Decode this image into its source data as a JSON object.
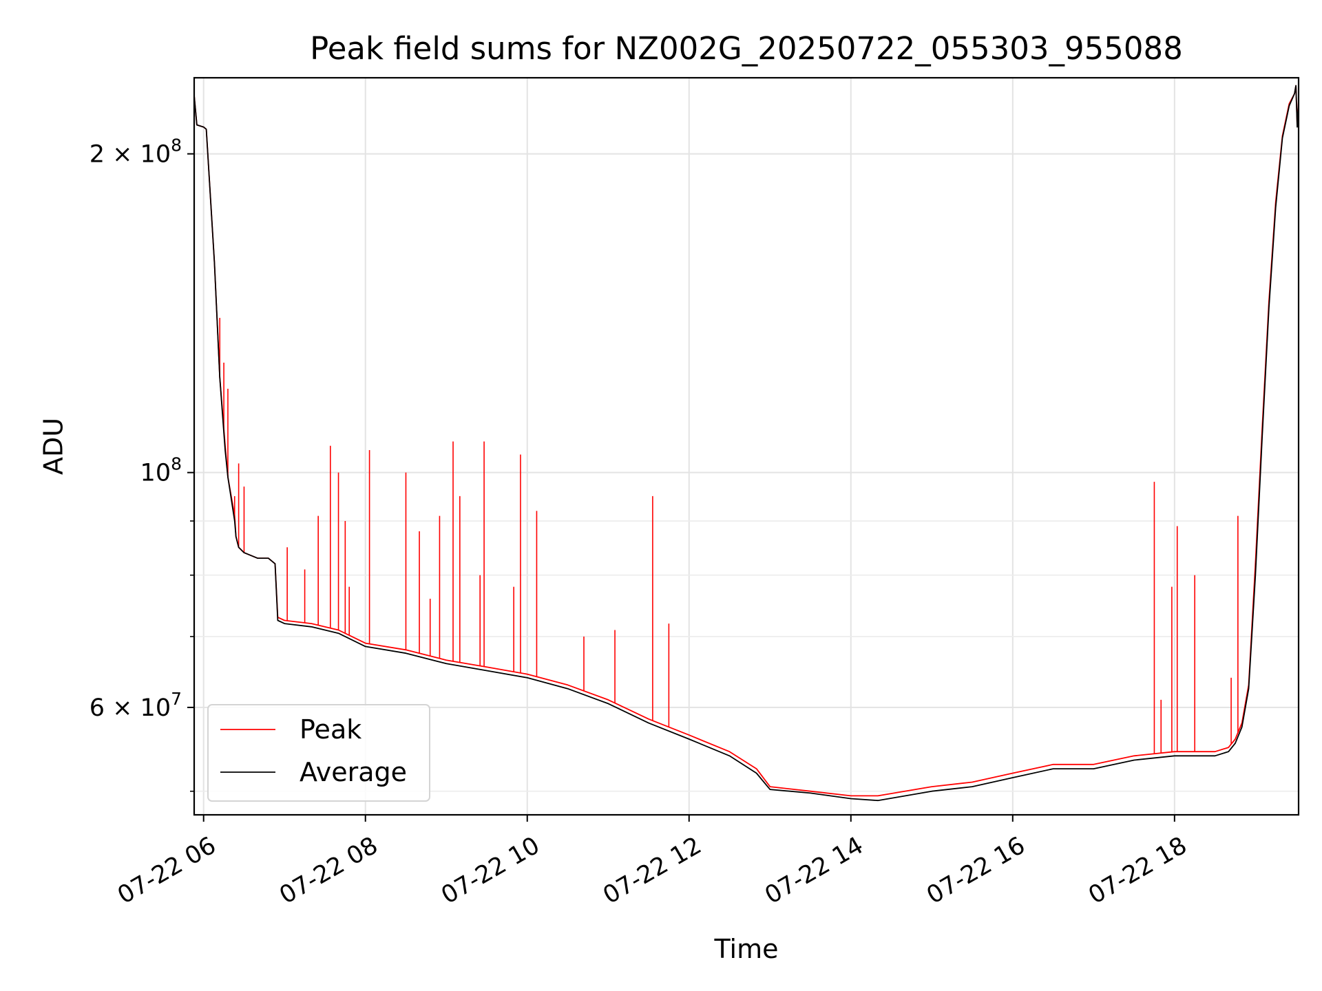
{
  "chart_data": {
    "type": "line",
    "title": "Peak field sums for NZ002G_20250722_055303_955088",
    "xlabel": "Time",
    "ylabel": "ADU",
    "x_axis": "datetime",
    "xlim": [
      "2025-07-22 05:53",
      "2025-07-22 19:32"
    ],
    "ylim": [
      47500000,
      236000000
    ],
    "y_scale": "log",
    "grid": true,
    "legend_position": "lower-left",
    "x_ticks": [
      {
        "value": "2025-07-22 06:00",
        "label": "07-22 06"
      },
      {
        "value": "2025-07-22 08:00",
        "label": "07-22 08"
      },
      {
        "value": "2025-07-22 10:00",
        "label": "07-22 10"
      },
      {
        "value": "2025-07-22 12:00",
        "label": "07-22 12"
      },
      {
        "value": "2025-07-22 14:00",
        "label": "07-22 14"
      },
      {
        "value": "2025-07-22 16:00",
        "label": "07-22 16"
      },
      {
        "value": "2025-07-22 18:00",
        "label": "07-22 18"
      }
    ],
    "y_major_ticks": [
      {
        "value": 60000000,
        "base": "6",
        "exp": "7"
      },
      {
        "value": 100000000,
        "base": "",
        "exp": "8"
      },
      {
        "value": 200000000,
        "base": "2",
        "exp": "8"
      }
    ],
    "y_minor_ticks": [
      50000000,
      70000000,
      80000000,
      90000000
    ],
    "series": [
      {
        "name": "Peak",
        "color": "#ff0000",
        "x": [
          "2025-07-22 05:53",
          "2025-07-22 05:55",
          "2025-07-22 06:00",
          "2025-07-22 06:02",
          "2025-07-22 06:08",
          "2025-07-22 06:12",
          "2025-07-22 06:16",
          "2025-07-22 06:18",
          "2025-07-22 06:23",
          "2025-07-22 06:24",
          "2025-07-22 06:26",
          "2025-07-22 06:30",
          "2025-07-22 06:40",
          "2025-07-22 06:48",
          "2025-07-22 06:53",
          "2025-07-22 06:55",
          "2025-07-22 07:00",
          "2025-07-22 07:20",
          "2025-07-22 07:40",
          "2025-07-22 08:00",
          "2025-07-22 08:30",
          "2025-07-22 09:00",
          "2025-07-22 09:30",
          "2025-07-22 10:00",
          "2025-07-22 10:30",
          "2025-07-22 11:00",
          "2025-07-22 11:30",
          "2025-07-22 12:00",
          "2025-07-22 12:30",
          "2025-07-22 12:50",
          "2025-07-22 13:00",
          "2025-07-22 13:30",
          "2025-07-22 14:00",
          "2025-07-22 14:20",
          "2025-07-22 15:00",
          "2025-07-22 15:30",
          "2025-07-22 16:00",
          "2025-07-22 16:30",
          "2025-07-22 17:00",
          "2025-07-22 17:30",
          "2025-07-22 18:00",
          "2025-07-22 18:30",
          "2025-07-22 18:40",
          "2025-07-22 18:45",
          "2025-07-22 18:50",
          "2025-07-22 18:55",
          "2025-07-22 19:00",
          "2025-07-22 19:05",
          "2025-07-22 19:10",
          "2025-07-22 19:15",
          "2025-07-22 19:20",
          "2025-07-22 19:25",
          "2025-07-22 19:29",
          "2025-07-22 19:30",
          "2025-07-22 19:31",
          "2025-07-22 19:32"
        ],
        "y": [
          227000000,
          213000000,
          212000000,
          211000000,
          158000000,
          123000000,
          106000000,
          99000000,
          91000000,
          87000000,
          85000000,
          84000000,
          83000000,
          83000000,
          82000000,
          73000000,
          72500000,
          72000000,
          71000000,
          69000000,
          68000000,
          66500000,
          65500000,
          64500000,
          63000000,
          61000000,
          58500000,
          56500000,
          54500000,
          52500000,
          50500000,
          50000000,
          49500000,
          49500000,
          50500000,
          51000000,
          52000000,
          53000000,
          53000000,
          54000000,
          54500000,
          54500000,
          55000000,
          56000000,
          58000000,
          63000000,
          82000000,
          110000000,
          145000000,
          180000000,
          208000000,
          223000000,
          228000000,
          232000000,
          213000000,
          225000000
        ],
        "spikes": [
          {
            "x": "2025-07-22 06:12",
            "y": 140000000
          },
          {
            "x": "2025-07-22 06:15",
            "y": 127000000
          },
          {
            "x": "2025-07-22 06:18",
            "y": 120000000
          },
          {
            "x": "2025-07-22 06:23",
            "y": 95000000
          },
          {
            "x": "2025-07-22 06:26",
            "y": 102000000
          },
          {
            "x": "2025-07-22 06:30",
            "y": 97000000
          },
          {
            "x": "2025-07-22 07:02",
            "y": 85000000
          },
          {
            "x": "2025-07-22 07:15",
            "y": 81000000
          },
          {
            "x": "2025-07-22 07:25",
            "y": 91000000
          },
          {
            "x": "2025-07-22 07:34",
            "y": 106000000
          },
          {
            "x": "2025-07-22 07:40",
            "y": 100000000
          },
          {
            "x": "2025-07-22 07:45",
            "y": 90000000
          },
          {
            "x": "2025-07-22 07:48",
            "y": 78000000
          },
          {
            "x": "2025-07-22 08:03",
            "y": 105000000
          },
          {
            "x": "2025-07-22 08:30",
            "y": 100000000
          },
          {
            "x": "2025-07-22 08:40",
            "y": 88000000
          },
          {
            "x": "2025-07-22 08:48",
            "y": 76000000
          },
          {
            "x": "2025-07-22 08:55",
            "y": 91000000
          },
          {
            "x": "2025-07-22 09:05",
            "y": 107000000
          },
          {
            "x": "2025-07-22 09:10",
            "y": 95000000
          },
          {
            "x": "2025-07-22 09:25",
            "y": 80000000
          },
          {
            "x": "2025-07-22 09:28",
            "y": 107000000
          },
          {
            "x": "2025-07-22 09:50",
            "y": 78000000
          },
          {
            "x": "2025-07-22 09:55",
            "y": 104000000
          },
          {
            "x": "2025-07-22 10:07",
            "y": 92000000
          },
          {
            "x": "2025-07-22 10:42",
            "y": 70000000
          },
          {
            "x": "2025-07-22 11:05",
            "y": 71000000
          },
          {
            "x": "2025-07-22 11:33",
            "y": 95000000
          },
          {
            "x": "2025-07-22 11:45",
            "y": 72000000
          },
          {
            "x": "2025-07-22 17:45",
            "y": 98000000
          },
          {
            "x": "2025-07-22 17:50",
            "y": 61000000
          },
          {
            "x": "2025-07-22 17:58",
            "y": 78000000
          },
          {
            "x": "2025-07-22 18:02",
            "y": 89000000
          },
          {
            "x": "2025-07-22 18:15",
            "y": 80000000
          },
          {
            "x": "2025-07-22 18:42",
            "y": 64000000
          },
          {
            "x": "2025-07-22 18:47",
            "y": 91000000
          }
        ]
      },
      {
        "name": "Average",
        "color": "#000000",
        "x": [
          "2025-07-22 05:53",
          "2025-07-22 05:55",
          "2025-07-22 06:00",
          "2025-07-22 06:02",
          "2025-07-22 06:08",
          "2025-07-22 06:12",
          "2025-07-22 06:16",
          "2025-07-22 06:18",
          "2025-07-22 06:23",
          "2025-07-22 06:24",
          "2025-07-22 06:26",
          "2025-07-22 06:30",
          "2025-07-22 06:40",
          "2025-07-22 06:48",
          "2025-07-22 06:53",
          "2025-07-22 06:55",
          "2025-07-22 07:00",
          "2025-07-22 07:20",
          "2025-07-22 07:40",
          "2025-07-22 08:00",
          "2025-07-22 08:30",
          "2025-07-22 09:00",
          "2025-07-22 09:30",
          "2025-07-22 10:00",
          "2025-07-22 10:30",
          "2025-07-22 11:00",
          "2025-07-22 11:30",
          "2025-07-22 12:00",
          "2025-07-22 12:30",
          "2025-07-22 12:50",
          "2025-07-22 13:00",
          "2025-07-22 13:30",
          "2025-07-22 14:00",
          "2025-07-22 14:20",
          "2025-07-22 15:00",
          "2025-07-22 15:30",
          "2025-07-22 16:00",
          "2025-07-22 16:30",
          "2025-07-22 17:00",
          "2025-07-22 17:30",
          "2025-07-22 18:00",
          "2025-07-22 18:30",
          "2025-07-22 18:40",
          "2025-07-22 18:45",
          "2025-07-22 18:50",
          "2025-07-22 18:55",
          "2025-07-22 19:00",
          "2025-07-22 19:05",
          "2025-07-22 19:10",
          "2025-07-22 19:15",
          "2025-07-22 19:20",
          "2025-07-22 19:25",
          "2025-07-22 19:29",
          "2025-07-22 19:30",
          "2025-07-22 19:31",
          "2025-07-22 19:32"
        ],
        "y": [
          227000000,
          213000000,
          212000000,
          211000000,
          158000000,
          123000000,
          105000000,
          99000000,
          90000000,
          87000000,
          85000000,
          84000000,
          83000000,
          83000000,
          82000000,
          72500000,
          72000000,
          71500000,
          70500000,
          68500000,
          67500000,
          66000000,
          65000000,
          64000000,
          62500000,
          60500000,
          58000000,
          56000000,
          54000000,
          52000000,
          50200000,
          49800000,
          49200000,
          49000000,
          50000000,
          50500000,
          51500000,
          52500000,
          52500000,
          53500000,
          54000000,
          54000000,
          54500000,
          55500000,
          57500000,
          62500000,
          80000000,
          108000000,
          143000000,
          178000000,
          207000000,
          222000000,
          228000000,
          232000000,
          212000000,
          224000000
        ]
      }
    ]
  }
}
